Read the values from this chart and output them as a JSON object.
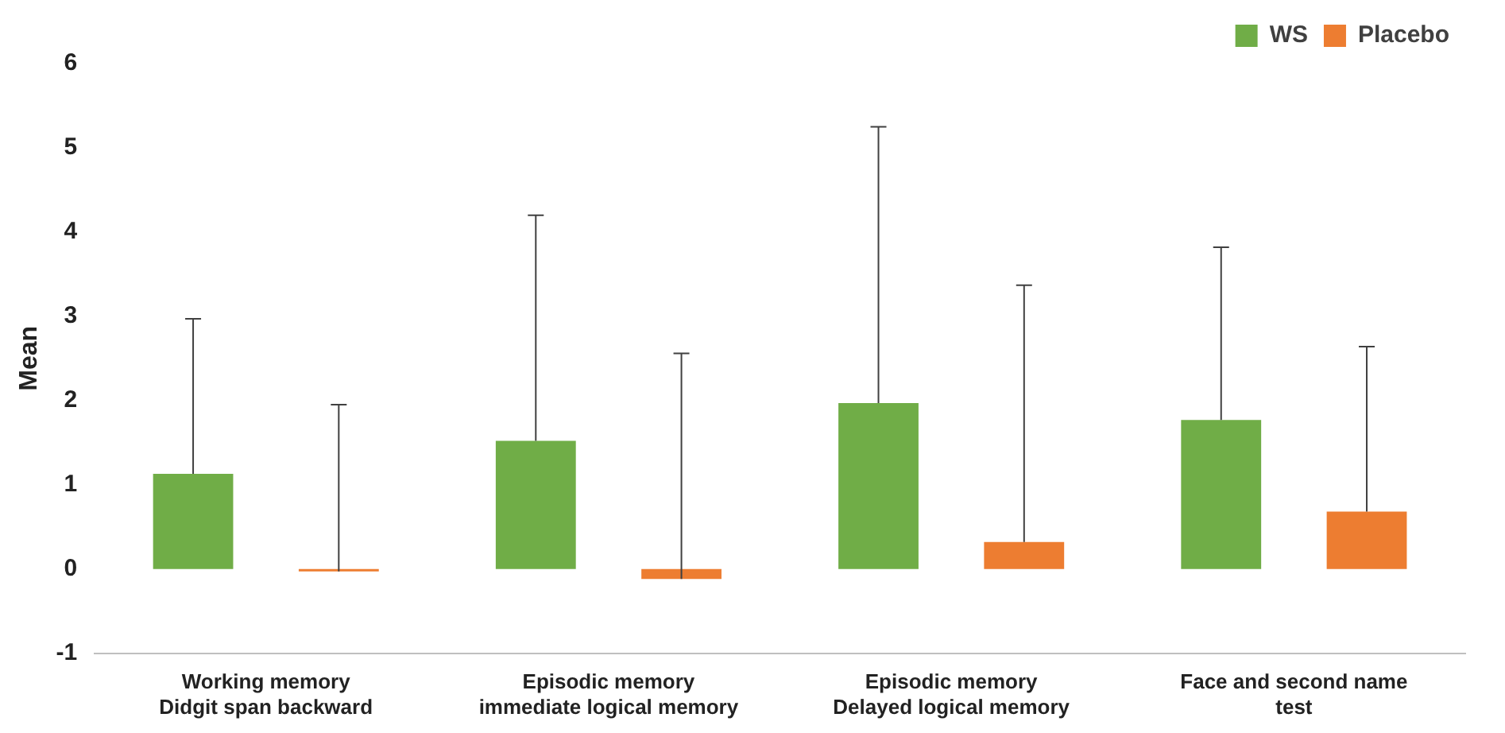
{
  "chart_data": {
    "type": "bar",
    "ylabel": "Mean",
    "categories": [
      "Working memory\nDidgit span backward",
      "Episodic memory\nimmediate logical memory",
      "Episodic memory\nDelayed logical memory",
      "Face and second name\ntest"
    ],
    "series": [
      {
        "name": "WS",
        "color": "#70ad47",
        "values": [
          1.13,
          1.52,
          1.97,
          1.77
        ],
        "errors": [
          [
            1.13,
            2.97
          ],
          [
            1.52,
            4.2
          ],
          [
            1.97,
            5.25
          ],
          [
            1.77,
            3.82
          ]
        ]
      },
      {
        "name": "Placebo",
        "color": "#ed7d31",
        "values": [
          -0.03,
          -0.12,
          0.32,
          0.68
        ],
        "errors": [
          [
            -0.03,
            1.95
          ],
          [
            -0.12,
            2.56
          ],
          [
            0.32,
            3.37
          ],
          [
            0.68,
            2.64
          ]
        ]
      }
    ],
    "ylim": [
      -1,
      6
    ],
    "yticks": [
      -1,
      0,
      1,
      2,
      3,
      4,
      5,
      6
    ],
    "grid": false,
    "legend": "top right"
  }
}
